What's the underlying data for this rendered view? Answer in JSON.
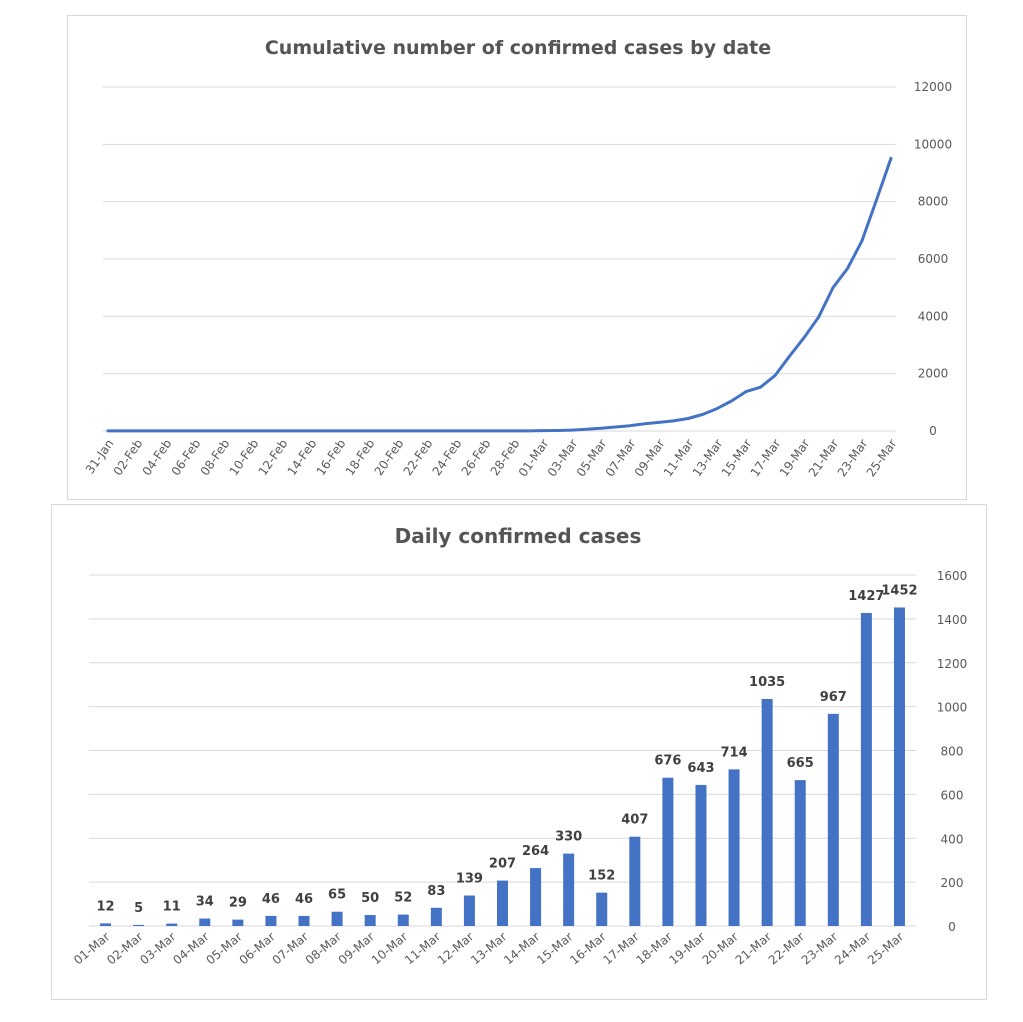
{
  "chart_data": [
    {
      "type": "line",
      "title": "Cumulative number of confirmed cases by date",
      "xlabel": "",
      "ylabel": "",
      "ylim": [
        0,
        12000
      ],
      "yticks": [
        0,
        2000,
        4000,
        6000,
        8000,
        10000,
        12000
      ],
      "y_axis_position": "right",
      "grid": true,
      "legend": "none",
      "line_color": "#4472c4",
      "x": [
        "31-Jan",
        "01-Feb",
        "02-Feb",
        "03-Feb",
        "04-Feb",
        "05-Feb",
        "06-Feb",
        "07-Feb",
        "08-Feb",
        "09-Feb",
        "10-Feb",
        "11-Feb",
        "12-Feb",
        "13-Feb",
        "14-Feb",
        "15-Feb",
        "16-Feb",
        "17-Feb",
        "18-Feb",
        "19-Feb",
        "20-Feb",
        "21-Feb",
        "22-Feb",
        "23-Feb",
        "24-Feb",
        "25-Feb",
        "26-Feb",
        "27-Feb",
        "28-Feb",
        "29-Feb",
        "01-Mar",
        "02-Mar",
        "03-Mar",
        "04-Mar",
        "05-Mar",
        "06-Mar",
        "07-Mar",
        "08-Mar",
        "09-Mar",
        "10-Mar",
        "11-Mar",
        "12-Mar",
        "13-Mar",
        "14-Mar",
        "15-Mar",
        "16-Mar",
        "17-Mar",
        "18-Mar",
        "19-Mar",
        "20-Mar",
        "21-Mar",
        "22-Mar",
        "23-Mar",
        "24-Mar",
        "25-Mar"
      ],
      "x_tick_labels": [
        "31-Jan",
        "02-Feb",
        "04-Feb",
        "06-Feb",
        "08-Feb",
        "10-Feb",
        "12-Feb",
        "14-Feb",
        "16-Feb",
        "18-Feb",
        "20-Feb",
        "22-Feb",
        "24-Feb",
        "26-Feb",
        "28-Feb",
        "01-Mar",
        "03-Mar",
        "05-Mar",
        "07-Mar",
        "09-Mar",
        "11-Mar",
        "13-Mar",
        "15-Mar",
        "17-Mar",
        "19-Mar",
        "21-Mar",
        "23-Mar",
        "25-Mar"
      ],
      "values": [
        2,
        2,
        2,
        2,
        2,
        2,
        2,
        2,
        2,
        2,
        2,
        2,
        2,
        2,
        2,
        2,
        2,
        2,
        2,
        2,
        2,
        2,
        2,
        2,
        2,
        2,
        2,
        2,
        2,
        2,
        14,
        19,
        30,
        64,
        93,
        139,
        185,
        250,
        300,
        352,
        435,
        574,
        781,
        1045,
        1375,
        1527,
        1934,
        2610,
        3253,
        3967,
        5002,
        5667,
        6634,
        8061,
        9513
      ]
    },
    {
      "type": "bar",
      "title": "Daily confirmed cases",
      "xlabel": "",
      "ylabel": "",
      "ylim": [
        0,
        1600
      ],
      "yticks": [
        0,
        200,
        400,
        600,
        800,
        1000,
        1200,
        1400,
        1600
      ],
      "y_axis_position": "right",
      "grid": true,
      "legend": "none",
      "bar_color": "#4472c4",
      "categories": [
        "01-Mar",
        "02-Mar",
        "03-Mar",
        "04-Mar",
        "05-Mar",
        "06-Mar",
        "07-Mar",
        "08-Mar",
        "09-Mar",
        "10-Mar",
        "11-Mar",
        "12-Mar",
        "13-Mar",
        "14-Mar",
        "15-Mar",
        "16-Mar",
        "17-Mar",
        "18-Mar",
        "19-Mar",
        "20-Mar",
        "21-Mar",
        "22-Mar",
        "23-Mar",
        "24-Mar",
        "25-Mar"
      ],
      "values": [
        12,
        5,
        11,
        34,
        29,
        46,
        46,
        65,
        50,
        52,
        83,
        139,
        207,
        264,
        330,
        152,
        407,
        676,
        643,
        714,
        1035,
        665,
        967,
        1427,
        1452
      ]
    }
  ]
}
